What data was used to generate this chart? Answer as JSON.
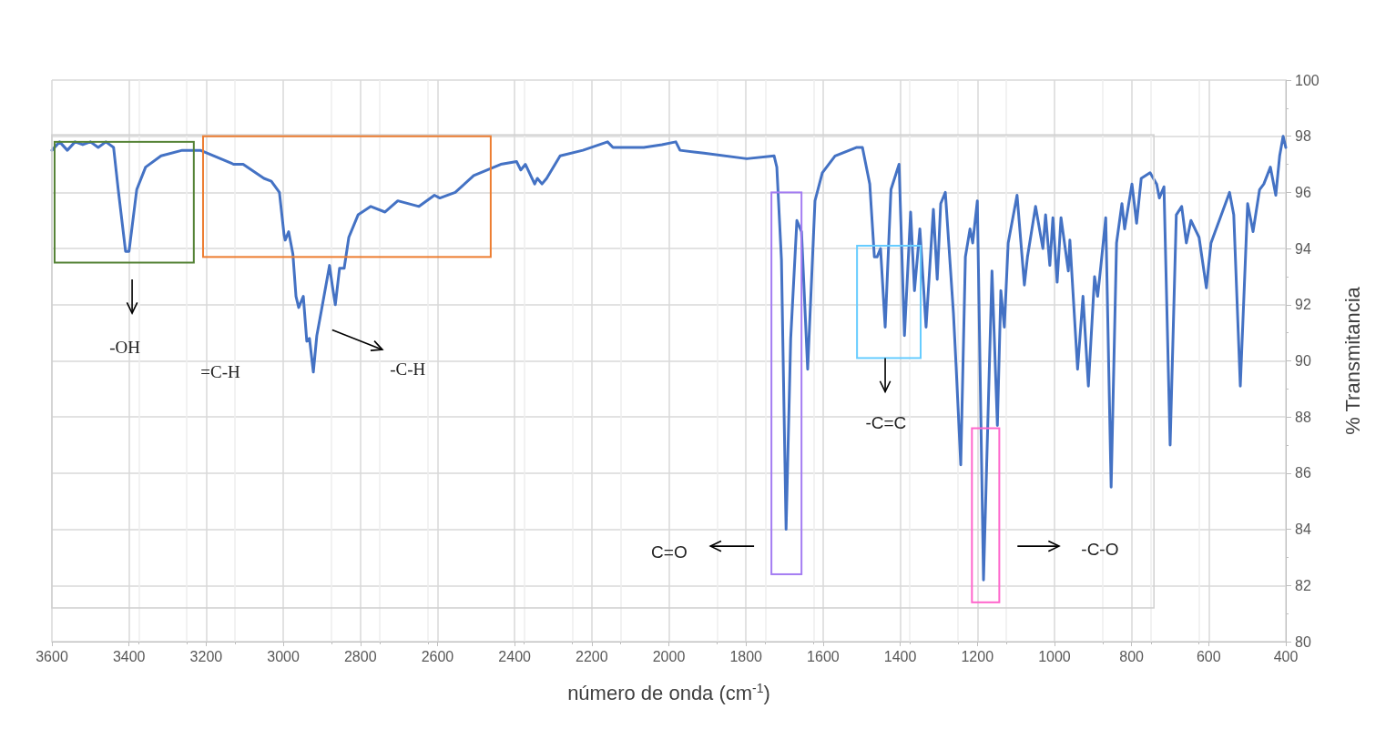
{
  "chart_data": {
    "type": "line",
    "xlabel": "número de onda (cm$^{-1}$)",
    "ylabel": "% Transmitancia",
    "xlim": [
      3600,
      400
    ],
    "xticks": [
      3600,
      3400,
      3200,
      3000,
      2800,
      2600,
      2400,
      2200,
      2000,
      1800,
      1600,
      1400,
      1200,
      1000,
      800,
      600,
      400
    ],
    "ylim": [
      80,
      100
    ],
    "yticks": [
      80,
      82,
      84,
      86,
      88,
      90,
      92,
      94,
      96,
      98,
      100
    ],
    "grid": true,
    "marker": "none",
    "line_style": "solid",
    "annotations": [
      "-OH",
      "=C-H",
      "-C-H",
      "C=O",
      "-C=C",
      "-C-O"
    ],
    "series": [
      {
        "color": "#4472c4",
        "x": [
          3600,
          3580,
          3560,
          3540,
          3520,
          3500,
          3480,
          3460,
          3440,
          3428,
          3409,
          3400,
          3380,
          3357,
          3317,
          3262,
          3215,
          3128,
          3104,
          3050,
          3031,
          3010,
          2998,
          2995,
          2986,
          2975,
          2967,
          2960,
          2948,
          2939,
          2932,
          2922,
          2913,
          2901,
          2880,
          2873,
          2865,
          2854,
          2842,
          2830,
          2806,
          2773,
          2736,
          2703,
          2648,
          2608,
          2594,
          2554,
          2506,
          2436,
          2395,
          2384,
          2372,
          2348,
          2341,
          2329,
          2317,
          2282,
          2223,
          2159,
          2145,
          2065,
          2018,
          1982,
          1971,
          1909,
          1798,
          1727,
          1720,
          1708,
          1696,
          1684,
          1668,
          1656,
          1640,
          1621,
          1602,
          1569,
          1514,
          1498,
          1479,
          1467,
          1460,
          1451,
          1439,
          1424,
          1403,
          1389,
          1373,
          1363,
          1349,
          1333,
          1314,
          1304,
          1295,
          1283,
          1262,
          1255,
          1243,
          1231,
          1219,
          1212,
          1200,
          1184,
          1162,
          1148,
          1139,
          1130,
          1120,
          1097,
          1078,
          1070,
          1049,
          1030,
          1023,
          1012,
          1004,
          993,
          983,
          964,
          960,
          940,
          926,
          912,
          896,
          888,
          878,
          867,
          853,
          839,
          825,
          818,
          799,
          787,
          775,
          752,
          735,
          728,
          716,
          700,
          684,
          670,
          658,
          646,
          625,
          606,
          594,
          570,
          546,
          535,
          518,
          499,
          485,
          468,
          457,
          440,
          426,
          416,
          407,
          400
        ],
        "values": [
          97.5,
          97.8,
          97.5,
          97.8,
          97.7,
          97.8,
          97.6,
          97.8,
          97.6,
          96.1,
          93.9,
          93.9,
          96.1,
          96.9,
          97.3,
          97.5,
          97.5,
          97.0,
          97.0,
          96.5,
          96.4,
          96.0,
          94.5,
          94.3,
          94.6,
          93.8,
          92.3,
          91.9,
          92.3,
          90.7,
          90.8,
          89.6,
          90.9,
          91.8,
          93.4,
          92.7,
          92.0,
          93.3,
          93.3,
          94.4,
          95.2,
          95.5,
          95.3,
          95.7,
          95.5,
          95.9,
          95.8,
          96.0,
          96.6,
          97.0,
          97.1,
          96.8,
          97.0,
          96.3,
          96.5,
          96.3,
          96.5,
          97.3,
          97.5,
          97.8,
          97.6,
          97.6,
          97.7,
          97.8,
          97.5,
          97.4,
          97.2,
          97.3,
          96.9,
          93.6,
          84.0,
          90.8,
          95.0,
          94.6,
          89.7,
          95.7,
          96.7,
          97.3,
          97.6,
          97.6,
          96.3,
          93.7,
          93.7,
          94.0,
          91.2,
          96.1,
          97.0,
          90.9,
          95.3,
          92.5,
          94.7,
          91.2,
          95.4,
          92.9,
          95.6,
          96.0,
          91.7,
          89.8,
          86.3,
          93.7,
          94.7,
          94.2,
          95.7,
          82.2,
          93.2,
          87.7,
          92.5,
          91.2,
          94.2,
          95.9,
          92.7,
          93.7,
          95.5,
          94.0,
          95.2,
          93.4,
          95.1,
          92.8,
          95.1,
          93.2,
          94.3,
          89.7,
          92.3,
          89.1,
          93.0,
          92.3,
          93.6,
          95.1,
          85.5,
          94.2,
          95.6,
          94.7,
          96.3,
          94.9,
          96.5,
          96.7,
          96.3,
          95.8,
          96.2,
          87.0,
          95.2,
          95.5,
          94.2,
          95.0,
          94.4,
          92.6,
          94.2,
          95.1,
          96.0,
          95.2,
          89.1,
          95.6,
          94.6,
          96.1,
          96.3,
          96.9,
          95.9,
          97.3,
          98.0,
          97.6
        ]
      }
    ]
  }
}
